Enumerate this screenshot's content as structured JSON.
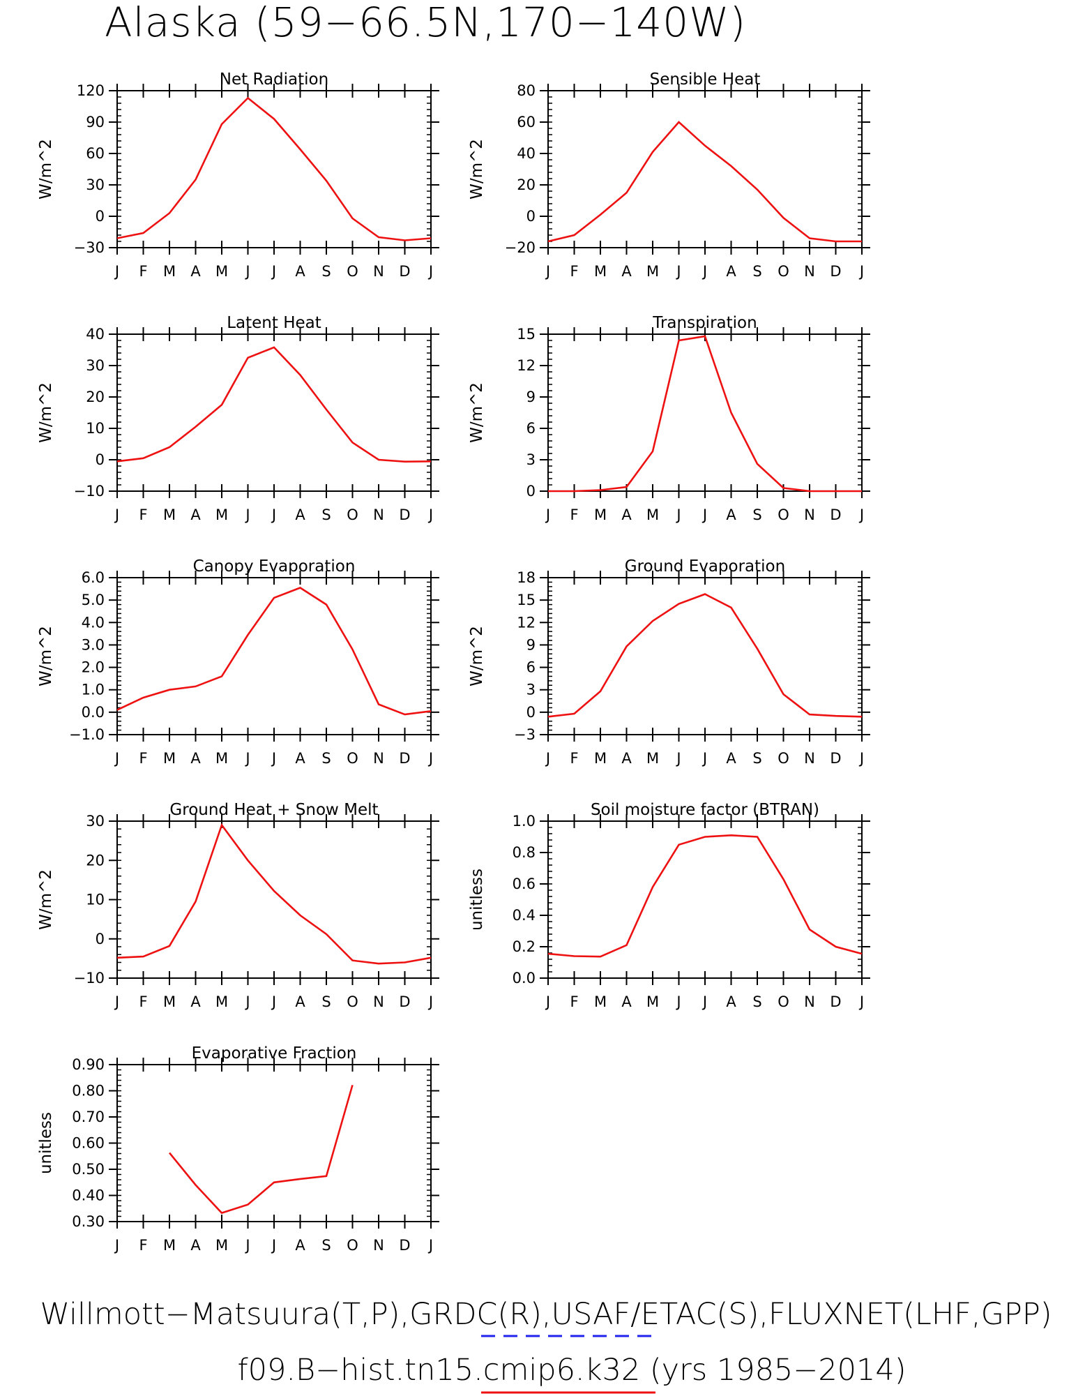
{
  "figure": {
    "title": "Alaska (59−66.5N,170−140W)",
    "footer_line1": "Willmott−Matsuura(T,P),GRDC(R),USAF/ETAC(S),FLUXNET(LHF,GPP)",
    "footer_line2": "f09.B−hist.tn15.cmip6.k32 (yrs 1985−2014)",
    "obs_legend_color": "#2222ee",
    "model_legend_color": "#ee1111"
  },
  "chart_data": [
    {
      "type": "line",
      "title": "Net Radiation",
      "ylabel": "W/m^2",
      "ylim": [
        -30,
        120
      ],
      "yticks": [
        -30,
        0,
        30,
        60,
        90,
        120
      ],
      "ytick_labels": [
        "−30",
        "0",
        "30",
        "60",
        "90",
        "120"
      ],
      "categories": [
        "J",
        "F",
        "M",
        "A",
        "M",
        "J",
        "J",
        "A",
        "S",
        "O",
        "N",
        "D",
        "J"
      ],
      "series": [
        {
          "color": "#ee1111",
          "values": [
            -21,
            -16,
            3,
            35,
            88,
            113,
            93,
            64,
            34,
            -2,
            -20,
            -23,
            -21
          ]
        }
      ]
    },
    {
      "type": "line",
      "title": "Sensible Heat",
      "ylabel": "W/m^2",
      "ylim": [
        -20,
        80
      ],
      "yticks": [
        -20,
        0,
        20,
        40,
        60,
        80
      ],
      "ytick_labels": [
        "−20",
        "0",
        "20",
        "40",
        "60",
        "80"
      ],
      "categories": [
        "J",
        "F",
        "M",
        "A",
        "M",
        "J",
        "J",
        "A",
        "S",
        "O",
        "N",
        "D",
        "J"
      ],
      "series": [
        {
          "color": "#ee1111",
          "values": [
            -16,
            -12,
            1,
            15,
            41,
            60,
            45,
            32,
            17,
            -1,
            -14,
            -16,
            -16
          ]
        }
      ]
    },
    {
      "type": "line",
      "title": "Latent Heat",
      "ylabel": "W/m^2",
      "ylim": [
        -10,
        40
      ],
      "yticks": [
        -10,
        0,
        10,
        20,
        30,
        40
      ],
      "ytick_labels": [
        "−10",
        "0",
        "10",
        "20",
        "30",
        "40"
      ],
      "categories": [
        "J",
        "F",
        "M",
        "A",
        "M",
        "J",
        "J",
        "A",
        "S",
        "O",
        "N",
        "D",
        "J"
      ],
      "series": [
        {
          "color": "#ee1111",
          "values": [
            -0.5,
            0.5,
            4,
            10.5,
            17.5,
            32.5,
            35.8,
            27,
            16,
            5.5,
            0,
            -0.6,
            -0.5
          ]
        }
      ]
    },
    {
      "type": "line",
      "title": "Transpiration",
      "ylabel": "W/m^2",
      "ylim": [
        0,
        15
      ],
      "yticks": [
        0,
        3,
        6,
        9,
        12,
        15
      ],
      "ytick_labels": [
        "0",
        "3",
        "6",
        "9",
        "12",
        "15"
      ],
      "categories": [
        "J",
        "F",
        "M",
        "A",
        "M",
        "J",
        "J",
        "A",
        "S",
        "O",
        "N",
        "D",
        "J"
      ],
      "series": [
        {
          "color": "#ee1111",
          "values": [
            0,
            0,
            0.1,
            0.4,
            3.8,
            14.4,
            14.8,
            7.5,
            2.6,
            0.3,
            0,
            0,
            0
          ]
        }
      ]
    },
    {
      "type": "line",
      "title": "Canopy Evaporation",
      "ylabel": "W/m^2",
      "ylim": [
        -1.0,
        6.0
      ],
      "yticks": [
        -1,
        0,
        1,
        2,
        3,
        4,
        5,
        6
      ],
      "ytick_labels": [
        "−1.0",
        "0.0",
        "1.0",
        "2.0",
        "3.0",
        "4.0",
        "5.0",
        "6.0"
      ],
      "categories": [
        "J",
        "F",
        "M",
        "A",
        "M",
        "J",
        "J",
        "A",
        "S",
        "O",
        "N",
        "D",
        "J"
      ],
      "series": [
        {
          "color": "#ee1111",
          "values": [
            0.1,
            0.65,
            1.0,
            1.15,
            1.6,
            3.45,
            5.1,
            5.55,
            4.8,
            2.8,
            0.35,
            -0.1,
            0.05
          ]
        }
      ]
    },
    {
      "type": "line",
      "title": "Ground Evaporation",
      "ylabel": "W/m^2",
      "ylim": [
        -3,
        18
      ],
      "yticks": [
        -3,
        0,
        3,
        6,
        9,
        12,
        15,
        18
      ],
      "ytick_labels": [
        "−3",
        "0",
        "3",
        "6",
        "9",
        "12",
        "15",
        "18"
      ],
      "categories": [
        "J",
        "F",
        "M",
        "A",
        "M",
        "J",
        "J",
        "A",
        "S",
        "O",
        "N",
        "D",
        "J"
      ],
      "series": [
        {
          "color": "#ee1111",
          "values": [
            -0.6,
            -0.2,
            2.8,
            8.8,
            12.2,
            14.5,
            15.8,
            14.0,
            8.5,
            2.4,
            -0.3,
            -0.5,
            -0.6
          ]
        }
      ]
    },
    {
      "type": "line",
      "title": "Ground Heat + Snow Melt",
      "ylabel": "W/m^2",
      "ylim": [
        -10,
        30
      ],
      "yticks": [
        -10,
        0,
        10,
        20,
        30
      ],
      "ytick_labels": [
        "−10",
        "0",
        "10",
        "20",
        "30"
      ],
      "categories": [
        "J",
        "F",
        "M",
        "A",
        "M",
        "J",
        "J",
        "A",
        "S",
        "O",
        "N",
        "D",
        "J"
      ],
      "series": [
        {
          "color": "#ee1111",
          "values": [
            -4.8,
            -4.5,
            -1.8,
            9.5,
            29,
            20,
            12.2,
            6,
            1.2,
            -5.5,
            -6.3,
            -6,
            -4.8
          ]
        }
      ]
    },
    {
      "type": "line",
      "title": "Soil moisture factor (BTRAN)",
      "ylabel": "unitless",
      "ylim": [
        0.0,
        1.0
      ],
      "yticks": [
        0,
        0.2,
        0.4,
        0.6,
        0.8,
        1.0
      ],
      "ytick_labels": [
        "0.0",
        "0.2",
        "0.4",
        "0.6",
        "0.8",
        "1.0"
      ],
      "categories": [
        "J",
        "F",
        "M",
        "A",
        "M",
        "J",
        "J",
        "A",
        "S",
        "O",
        "N",
        "D",
        "J"
      ],
      "series": [
        {
          "color": "#ee1111",
          "values": [
            0.155,
            0.14,
            0.137,
            0.21,
            0.58,
            0.85,
            0.9,
            0.91,
            0.9,
            0.63,
            0.31,
            0.2,
            0.155
          ]
        }
      ]
    },
    {
      "type": "line",
      "title": "Evaporative Fraction",
      "ylabel": "unitless",
      "ylim": [
        0.3,
        0.9
      ],
      "yticks": [
        0.3,
        0.4,
        0.5,
        0.6,
        0.7,
        0.8,
        0.9
      ],
      "ytick_labels": [
        "0.30",
        "0.40",
        "0.50",
        "0.60",
        "0.70",
        "0.80",
        "0.90"
      ],
      "categories": [
        "J",
        "F",
        "M",
        "A",
        "M",
        "J",
        "J",
        "A",
        "S",
        "O",
        "N",
        "D",
        "J"
      ],
      "series": [
        {
          "color": "#ee1111",
          "values": [
            null,
            null,
            0.563,
            0.44,
            0.333,
            0.365,
            0.45,
            0.463,
            0.474,
            0.822,
            null,
            null,
            null
          ]
        }
      ]
    }
  ]
}
